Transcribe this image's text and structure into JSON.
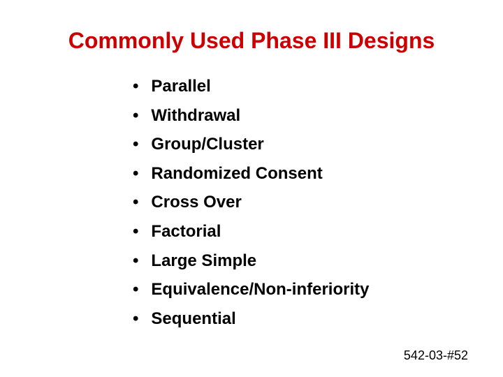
{
  "slide": {
    "title": "Commonly Used Phase III Designs",
    "title_color": "#cc0000",
    "title_fontsize": 32,
    "background_color": "#ffffff",
    "bullets": [
      "Parallel",
      "Withdrawal",
      "Group/Cluster",
      "Randomized Consent",
      "Cross Over",
      "Factorial",
      "Large Simple",
      "Equivalence/Non-inferiority",
      "Sequential"
    ],
    "bullet_marker": "•",
    "bullet_color": "#000000",
    "bullet_fontsize": 24,
    "bullet_fontweight": "bold",
    "footer": "542-03-#52",
    "footer_fontsize": 18
  }
}
